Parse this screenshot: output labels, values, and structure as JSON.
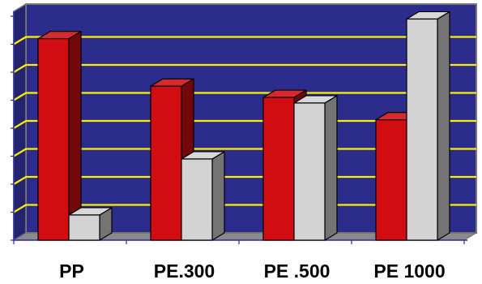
{
  "chart_data": {
    "type": "bar",
    "style": "3d-clustered-column",
    "categories": [
      "PP",
      "PE.300",
      "PE .500",
      "PE 1000"
    ],
    "series": [
      {
        "values": [
          7.2,
          5.5,
          5.1,
          4.3
        ],
        "color": "#d10d12"
      },
      {
        "values": [
          0.9,
          2.9,
          4.9,
          7.9
        ],
        "color": "#d3d3d3"
      }
    ],
    "ylim": [
      0,
      8
    ],
    "y_gridlines": [
      1,
      2,
      3,
      4,
      5,
      6,
      7
    ],
    "grid": true,
    "legend": "none",
    "colors": {
      "plot_background": "#2c2c8c",
      "gridline": "#ffee00",
      "floor": "#8a8a8a",
      "wall_frame": "#7a7a7a",
      "axis": "#2a2a9a"
    }
  }
}
